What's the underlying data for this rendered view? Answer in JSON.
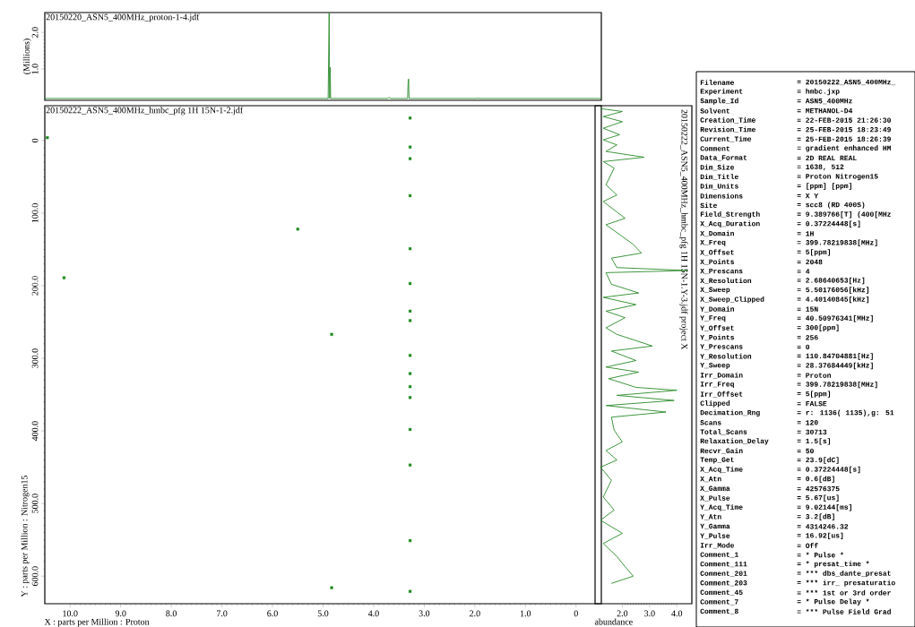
{
  "chart_data": [
    {
      "type": "line",
      "xlim": [
        10.5,
        -0.5
      ],
      "ylim": [
        0.15,
        2.54
      ],
      "yticks": [
        {
          "value": 1,
          "label": "1.0"
        },
        {
          "value": 2,
          "label": "2.0"
        }
      ],
      "ylabel": "(Millions)",
      "tick_labels": "y",
      "annotations": [
        "20150220_ASN5_400MHz_proton-1-4.jdf"
      ],
      "series": [
        {
          "color": "#2a8a2a",
          "x": [
            10.5,
            4.9,
            4.88,
            4.87,
            4.86,
            4.85,
            3.72,
            3.7,
            3.66,
            3.33,
            3.32,
            3.31,
            3.3,
            1.95,
            1.94,
            1.93,
            -0.5
          ],
          "values": [
            0.2,
            0.2,
            2.54,
            0.2,
            1.05,
            0.2,
            0.2,
            0.23,
            0.2,
            0.2,
            0.6,
            0.73,
            0.2,
            0.2,
            0.22,
            0.2,
            0.2
          ]
        }
      ]
    },
    {
      "type": "scatter",
      "marker": "square",
      "xlim": [
        10.5,
        -0.5
      ],
      "ylim": [
        638,
        -48
      ],
      "xticks": [
        {
          "value": 10,
          "label": "10.0"
        },
        {
          "value": 9,
          "label": "9.0"
        },
        {
          "value": 8,
          "label": "8.0"
        },
        {
          "value": 7,
          "label": "7.0"
        },
        {
          "value": 6,
          "label": "6.0"
        },
        {
          "value": 5,
          "label": "5.0"
        },
        {
          "value": 4,
          "label": "4.0"
        },
        {
          "value": 3,
          "label": "3.0"
        },
        {
          "value": 2,
          "label": "2.0"
        },
        {
          "value": 1,
          "label": "1.0"
        },
        0
      ],
      "yticks": [
        0,
        {
          "value": 100,
          "label": "100.0"
        },
        {
          "value": 200,
          "label": "200.0"
        },
        {
          "value": 300,
          "label": "300.0"
        },
        {
          "value": 400,
          "label": "400.0"
        },
        {
          "value": 500,
          "label": "500.0"
        },
        {
          "value": 600,
          "label": "600.0"
        }
      ],
      "xlabel": "X : parts per Million : Proton",
      "ylabel": "Y : parts per Million : Nitrogen15",
      "annotations": [
        "20150222_ASN5_400MHz_hmbc_pfg 1H 15N-1-2.jdf"
      ],
      "series": [
        {
          "color": "#1e8a1e",
          "x": [
            10.45,
            10.12,
            5.5,
            4.83,
            4.83,
            3.28,
            3.28,
            3.28,
            3.28,
            3.28,
            3.28,
            3.28,
            3.28,
            3.28,
            3.28,
            3.28,
            3.28,
            3.28,
            3.28,
            3.28,
            3.28
          ],
          "values": [
            -4,
            189,
            122,
            267,
            616,
            -31,
            9,
            25,
            76,
            149,
            197,
            235,
            248,
            296,
            321,
            339,
            354,
            398,
            447,
            551,
            621
          ]
        }
      ]
    },
    {
      "type": "line",
      "xlim": [
        1.0,
        4.55
      ],
      "ylim": [
        638,
        -48
      ],
      "xticks": [
        {
          "value": 2,
          "label": "2.0"
        },
        {
          "value": 3,
          "label": "3.0"
        },
        {
          "value": 4,
          "label": "4.0"
        }
      ],
      "xlabel": "abundance",
      "tick_labels": "x",
      "annotations": [
        "20150222_ASN5_400MHz_hmbc_pfg 1H 15N-1.Y-3.jdf project X"
      ],
      "series": [
        {
          "color": "#2a8a2a",
          "x": [
            1.2,
            2.0,
            1.3,
            2.0,
            1.3,
            1.9,
            1.3,
            1.8,
            1.4,
            2.8,
            1.3,
            1.7,
            1.4,
            1.8,
            1.3,
            2.1,
            1.4,
            2.4,
            2.7,
            1.6,
            1.8,
            4.4,
            1.4,
            1.6,
            2.6,
            1.3,
            2.5,
            1.4,
            2.1,
            1.4,
            1.8,
            3.1,
            1.6,
            2.5,
            1.4,
            2.6,
            1.5,
            2.5,
            4.0,
            1.8,
            3.9,
            1.4,
            3.6,
            1.6,
            1.7,
            2.0,
            1.4,
            1.8,
            1.2,
            1.6,
            1.3,
            1.7,
            1.2,
            2.0,
            1.3,
            1.8,
            2.1,
            2.4,
            1.6
          ],
          "values": [
            -44,
            -40,
            -33,
            -26,
            -17,
            -8,
            -1,
            6,
            15,
            23,
            29,
            38,
            61,
            75,
            84,
            107,
            116,
            143,
            155,
            162,
            175,
            179,
            182,
            198,
            210,
            216,
            226,
            235,
            244,
            258,
            267,
            283,
            290,
            303,
            312,
            319,
            328,
            340,
            344,
            351,
            358,
            365,
            374,
            381,
            399,
            415,
            427,
            440,
            450,
            468,
            491,
            509,
            523,
            541,
            555,
            573,
            587,
            600,
            610
          ]
        }
      ]
    },
    {
      "type": "other",
      "annotations": [
        "Filename",
        "= 20150222_ASN5_400MHz_",
        "Experiment",
        "= hmbc.jxp",
        "Sample_Id",
        "= ASN5_400MHz",
        "Solvent",
        "= METHANOL-D4",
        "Creation_Time",
        "= 22-FEB-2015 21:26:30",
        "Revision_Time",
        "= 25-FEB-2015 18:23:49",
        "Current_Time",
        "= 25-FEB-2015 18:26:39",
        "Comment",
        "= gradient enhanced HM",
        "Data_Format",
        "= 2D REAL REAL",
        "Dim_Size",
        "= 1638, 512",
        "Dim_Title",
        "= Proton Nitrogen15",
        "Dim_Units",
        "= [ppm] [ppm]",
        "Dimensions",
        "= X Y",
        "Site",
        "= scc8 (RD 400S)",
        "Field_Strength",
        "= 9.389766[T] (400[MHz",
        "X_Acq_Duration",
        "= 0.37224448[s]",
        "X_Domain",
        "= 1H",
        "X_Freq",
        "= 399.78219838[MHz]",
        "X_Offset",
        "= 5[ppm]",
        "X_Points",
        "= 2048",
        "X_Prescans",
        "= 4",
        "X_Resolution",
        "= 2.68640653[Hz]",
        "X_Sweep",
        "= 5.50176056[kHz]",
        "X_Sweep_Clipped",
        "= 4.40140845[kHz]",
        "Y_Domain",
        "= 15N",
        "Y_Freq",
        "= 40.50976341[MHz]",
        "Y_Offset",
        "= 300[ppm]",
        "Y_Points",
        "= 256",
        "Y_Prescans",
        "= 0",
        "Y_Resolution",
        "= 110.84704881[Hz]",
        "Y_Sweep",
        "= 28.37684449[kHz]",
        "Irr_Domain",
        "= Proton",
        "Irr_Freq",
        "= 399.78219838[MHz]",
        "Irr_Offset",
        "= 5[ppm]",
        "Clipped",
        "= FALSE",
        "Decimation_Rng",
        "= r: 1136( 1135),g: 51",
        "Scans",
        "= 120",
        "Total_Scans",
        "= 30713",
        "Relaxation_Delay",
        "= 1.5[s]",
        "Recvr_Gain",
        "= 50",
        "Temp_Get",
        "= 23.9[dC]",
        "X_Acq_Time",
        "= 0.37224448[s]",
        "X_Atn",
        "= 0.6[dB]",
        "X_Gamma",
        "= 42576375",
        "X_Pulse",
        "= 5.67[us]",
        "Y_Acq_Time",
        "= 9.02144[ms]",
        "Y_Atn",
        "= 3.2[dB]",
        "Y_Gamma",
        "= 4314246.32",
        "Y_Pulse",
        "= 16.92[us]",
        "Irr_Mode",
        "= Off",
        "Comment_1",
        "= *** Pulse ***",
        "Comment_111",
        "= *** presat_time ***",
        "Comment_201",
        "= *** dbs_dante_presat",
        "Comment_203",
        "= *** irr_ presaturatio",
        "Comment_45",
        "= *** 1st or 3rd order",
        "Comment_7",
        "= *** Pulse Delay ***",
        "Comment_8",
        "= *** Pulse Field Grad"
      ]
    }
  ]
}
